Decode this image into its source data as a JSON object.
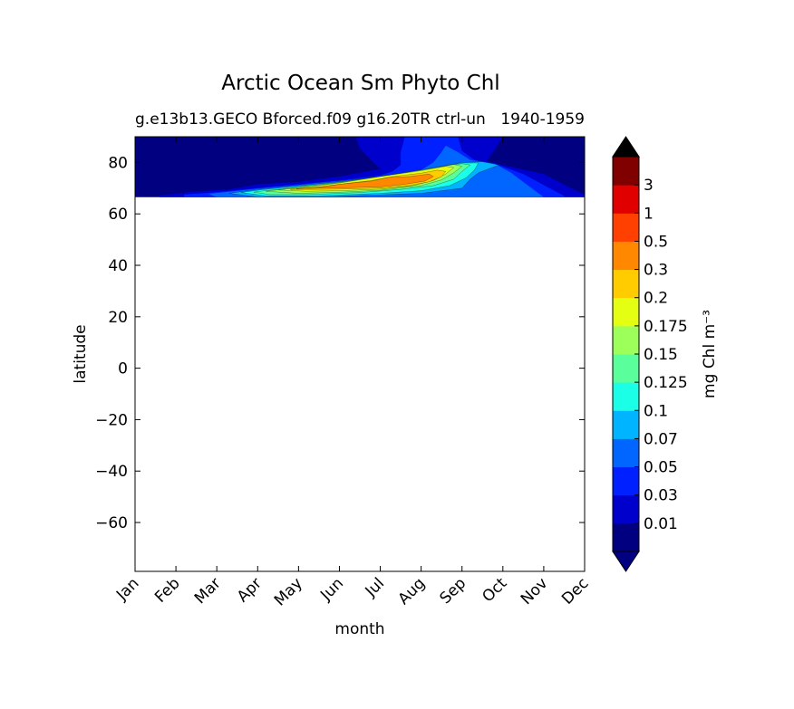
{
  "chart_data": {
    "type": "heatmap",
    "subtype": "filled-contour",
    "title": "Arctic Ocean Sm Phyto Chl",
    "subtitle_left": "g.e13b13.GECO Bforced.f09 g16.20TR ctrl-un",
    "subtitle_right": "1940-1959",
    "xlabel": "month",
    "ylabel": "latitude",
    "x_categories": [
      "Jan",
      "Feb",
      "Mar",
      "Apr",
      "May",
      "Jun",
      "Jul",
      "Aug",
      "Sep",
      "Oct",
      "Nov",
      "Dec"
    ],
    "y_ticks": [
      80,
      60,
      40,
      20,
      0,
      -20,
      -40,
      -60
    ],
    "y_tick_labels": [
      "80",
      "60",
      "40",
      "20",
      "0",
      "−20",
      "−40",
      "−60"
    ],
    "ylim": [
      -79,
      90
    ],
    "data_lat_range": [
      66.5,
      90
    ],
    "grid": false,
    "colorbar": {
      "label": "mg Chl m⁻³",
      "levels": [
        "0.01",
        "0.03",
        "0.05",
        "0.07",
        "0.1",
        "0.125",
        "0.15",
        "0.175",
        "0.2",
        "0.3",
        "0.5",
        "1",
        "3"
      ],
      "colors": [
        "#000080",
        "#0000cd",
        "#0020ff",
        "#0066ff",
        "#00b4ff",
        "#1affe5",
        "#5aff9c",
        "#9cff5a",
        "#e5ff12",
        "#ffcc00",
        "#ff8800",
        "#ff4000",
        "#e00000",
        "#800000"
      ],
      "extend": "both",
      "under_color": "#000080",
      "over_color": "#000000"
    },
    "contour_regions": [
      {
        "level_index": 1,
        "points": [
          [
            0.6,
            67.2
          ],
          [
            1.5,
            68.8
          ],
          [
            2.3,
            69.5
          ],
          [
            3.0,
            71.5
          ],
          [
            4.0,
            72.5
          ],
          [
            5.0,
            74.5
          ],
          [
            5.5,
            76.0
          ],
          [
            6.0,
            77.5
          ],
          [
            5.8,
            80.5
          ],
          [
            5.5,
            85.5
          ],
          [
            5.4,
            90
          ],
          [
            9.0,
            90
          ],
          [
            8.8,
            85.0
          ],
          [
            8.6,
            80.5
          ],
          [
            9.0,
            79.0
          ],
          [
            10.0,
            75.5
          ],
          [
            10.6,
            70.5
          ],
          [
            11.0,
            67.5
          ],
          [
            11.0,
            66.5
          ],
          [
            0.6,
            66.5
          ]
        ]
      },
      {
        "level_index": 2,
        "points": [
          [
            1.2,
            67.5
          ],
          [
            2.0,
            68.5
          ],
          [
            3.0,
            70.0
          ],
          [
            4.0,
            71.5
          ],
          [
            5.0,
            73.0
          ],
          [
            6.0,
            75.0
          ],
          [
            6.3,
            76.5
          ],
          [
            6.5,
            79.0
          ],
          [
            6.5,
            84.0
          ],
          [
            6.6,
            90
          ],
          [
            7.9,
            90
          ],
          [
            8.0,
            84.5
          ],
          [
            8.3,
            81.0
          ],
          [
            8.8,
            79.5
          ],
          [
            9.5,
            75.5
          ],
          [
            10.2,
            69.5
          ],
          [
            10.5,
            67.0
          ],
          [
            10.5,
            66.5
          ],
          [
            1.2,
            66.5
          ]
        ]
      },
      {
        "level_index": 3,
        "points": [
          [
            1.8,
            67.8
          ],
          [
            3.0,
            69.8
          ],
          [
            4.0,
            71.2
          ],
          [
            5.0,
            72.8
          ],
          [
            6.0,
            74.5
          ],
          [
            7.0,
            77.0
          ],
          [
            7.3,
            80.0
          ],
          [
            7.5,
            84.0
          ],
          [
            7.6,
            86.5
          ],
          [
            7.9,
            84.0
          ],
          [
            8.2,
            81.0
          ],
          [
            8.8,
            79.5
          ],
          [
            9.2,
            76.0
          ],
          [
            9.7,
            70.0
          ],
          [
            10.0,
            66.5
          ],
          [
            2.0,
            66.5
          ]
        ]
      },
      {
        "level_index": 4,
        "points": [
          [
            2.3,
            68.0
          ],
          [
            3.0,
            69.5
          ],
          [
            4.0,
            71.0
          ],
          [
            5.0,
            72.5
          ],
          [
            6.0,
            74.5
          ],
          [
            7.0,
            77.0
          ],
          [
            8.0,
            80.0
          ],
          [
            8.5,
            80.3
          ],
          [
            8.9,
            79.0
          ],
          [
            8.4,
            76.0
          ],
          [
            8.2,
            73.5
          ],
          [
            8.0,
            70.0
          ],
          [
            7.0,
            68.0
          ],
          [
            6.0,
            67.4
          ],
          [
            4.5,
            66.6
          ],
          [
            3.0,
            66.6
          ]
        ]
      },
      {
        "level_index": 5,
        "points": [
          [
            2.6,
            68.3
          ],
          [
            3.0,
            69.2
          ],
          [
            4.0,
            70.8
          ],
          [
            5.0,
            72.5
          ],
          [
            6.0,
            74.5
          ],
          [
            7.0,
            77.0
          ],
          [
            8.0,
            79.8
          ],
          [
            8.4,
            79.8
          ],
          [
            8.3,
            77.0
          ],
          [
            8.1,
            74.0
          ],
          [
            7.7,
            71.0
          ],
          [
            7.0,
            69.0
          ],
          [
            6.0,
            68.0
          ],
          [
            4.5,
            67.0
          ],
          [
            3.2,
            67.0
          ]
        ]
      },
      {
        "level_index": 6,
        "points": [
          [
            2.9,
            68.5
          ],
          [
            4.0,
            70.5
          ],
          [
            5.0,
            72.3
          ],
          [
            6.0,
            74.5
          ],
          [
            7.0,
            77.0
          ],
          [
            8.0,
            79.5
          ],
          [
            8.2,
            79.0
          ],
          [
            8.0,
            76.5
          ],
          [
            7.8,
            73.5
          ],
          [
            7.3,
            71.0
          ],
          [
            6.5,
            69.5
          ],
          [
            5.5,
            68.3
          ],
          [
            4.2,
            67.5
          ],
          [
            3.3,
            67.5
          ]
        ]
      },
      {
        "level_index": 7,
        "points": [
          [
            3.2,
            68.8
          ],
          [
            4.0,
            70.3
          ],
          [
            5.0,
            72.2
          ],
          [
            6.0,
            74.5
          ],
          [
            7.0,
            77.0
          ],
          [
            7.8,
            79.2
          ],
          [
            8.0,
            78.5
          ],
          [
            7.8,
            76.0
          ],
          [
            7.5,
            73.2
          ],
          [
            7.0,
            71.0
          ],
          [
            6.0,
            69.2
          ],
          [
            5.0,
            68.4
          ],
          [
            4.0,
            68.0
          ]
        ]
      },
      {
        "level_index": 8,
        "points": [
          [
            3.5,
            69.3
          ],
          [
            4.3,
            70.6
          ],
          [
            5.0,
            72.0
          ],
          [
            6.0,
            74.5
          ],
          [
            7.0,
            76.8
          ],
          [
            7.6,
            78.5
          ],
          [
            7.8,
            78.0
          ],
          [
            7.6,
            75.5
          ],
          [
            7.3,
            73.0
          ],
          [
            6.8,
            71.0
          ],
          [
            6.0,
            69.6
          ],
          [
            5.0,
            69.0
          ],
          [
            4.2,
            68.8
          ]
        ]
      },
      {
        "level_index": 9,
        "points": [
          [
            3.8,
            69.5
          ],
          [
            4.5,
            70.5
          ],
          [
            5.0,
            71.5
          ],
          [
            5.8,
            73.0
          ],
          [
            6.3,
            74.5
          ],
          [
            7.0,
            75.8
          ],
          [
            7.4,
            77.0
          ],
          [
            7.6,
            76.5
          ],
          [
            7.5,
            74.5
          ],
          [
            7.2,
            72.5
          ],
          [
            6.7,
            71.0
          ],
          [
            6.0,
            70.0
          ],
          [
            5.0,
            69.6
          ],
          [
            4.4,
            69.5
          ]
        ]
      },
      {
        "level_index": 10,
        "points": [
          [
            3.95,
            69.8
          ],
          [
            4.6,
            70.5
          ],
          [
            5.0,
            71.5
          ],
          [
            5.8,
            72.8
          ],
          [
            6.2,
            74.2
          ],
          [
            6.7,
            74.5
          ],
          [
            7.2,
            75.5
          ],
          [
            7.3,
            74.5
          ],
          [
            7.1,
            72.8
          ],
          [
            6.6,
            71.5
          ],
          [
            6.0,
            70.5
          ],
          [
            5.0,
            70.1
          ],
          [
            4.3,
            69.9
          ]
        ]
      }
    ]
  }
}
